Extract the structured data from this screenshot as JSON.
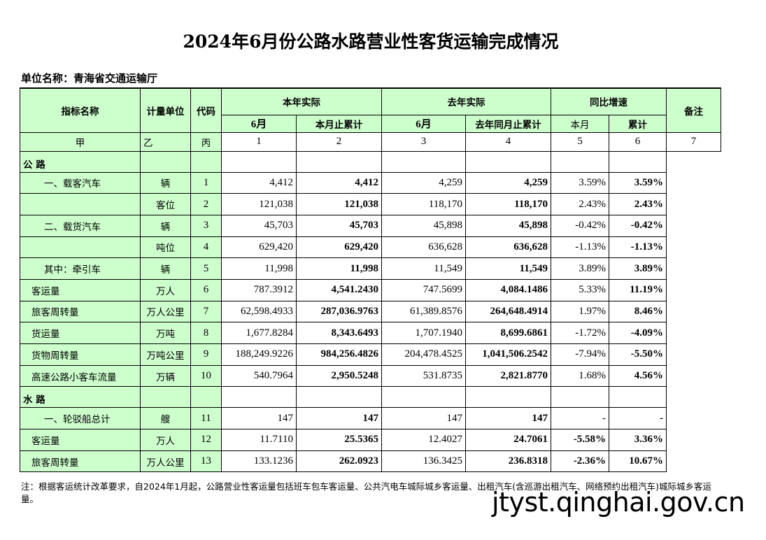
{
  "title": "2024年6月份公路水路营业性客货运输完成情况",
  "unit_label": "单位名称：青海省交通运输厅",
  "header": {
    "name": "指标名称",
    "unit": "计量单位",
    "code": "代码",
    "this_year": "本年实际",
    "last_year": "去年实际",
    "yoy": "同比增速",
    "remark": "备注",
    "ty_month": "6月",
    "ty_cum": "本月止累计",
    "ly_month": "6月",
    "ly_cum": "去年同月止累计",
    "yoy_month": "本月",
    "yoy_cum": "累计"
  },
  "index_row": [
    "甲",
    "乙",
    "丙",
    "1",
    "2",
    "3",
    "4",
    "5",
    "6",
    "7"
  ],
  "sections": [
    {
      "label": "公  路",
      "rows": [
        {
          "name": "一、载客汽车",
          "indent": 2,
          "unit": "辆",
          "code": "1",
          "v": [
            "4,412",
            "4,412",
            "4,259",
            "4,259",
            "3.59%",
            "3.59%"
          ]
        },
        {
          "name": "",
          "indent": 0,
          "unit": "客位",
          "code": "2",
          "v": [
            "121,038",
            "121,038",
            "118,170",
            "118,170",
            "2.43%",
            "2.43%"
          ]
        },
        {
          "name": "二、载货汽车",
          "indent": 2,
          "unit": "辆",
          "code": "3",
          "v": [
            "45,703",
            "45,703",
            "45,898",
            "45,898",
            "-0.42%",
            "-0.42%"
          ]
        },
        {
          "name": "",
          "indent": 0,
          "unit": "吨位",
          "code": "4",
          "v": [
            "629,420",
            "629,420",
            "636,628",
            "636,628",
            "-1.13%",
            "-1.13%"
          ]
        },
        {
          "name": "其中：牵引车",
          "indent": 2,
          "unit": "辆",
          "code": "5",
          "v": [
            "11,998",
            "11,998",
            "11,549",
            "11,549",
            "3.89%",
            "3.89%"
          ]
        },
        {
          "name": "客运量",
          "indent": 1,
          "unit": "万人",
          "code": "6",
          "v": [
            "787.3912",
            "4,541.2430",
            "747.5699",
            "4,084.1486",
            "5.33%",
            "11.19%"
          ]
        },
        {
          "name": "旅客周转量",
          "indent": 1,
          "unit": "万人公里",
          "code": "7",
          "v": [
            "62,598.4933",
            "287,036.9763",
            "61,389.8576",
            "264,648.4914",
            "1.97%",
            "8.46%"
          ]
        },
        {
          "name": "货运量",
          "indent": 1,
          "unit": "万吨",
          "code": "8",
          "v": [
            "1,677.8284",
            "8,343.6493",
            "1,707.1940",
            "8,699.6861",
            "-1.72%",
            "-4.09%"
          ]
        },
        {
          "name": "货物周转量",
          "indent": 1,
          "unit": "万吨公里",
          "code": "9",
          "v": [
            "188,249.9226",
            "984,256.4826",
            "204,478.4525",
            "1,041,506.2542",
            "-7.94%",
            "-5.50%"
          ]
        },
        {
          "name": "高速公路小客车流量",
          "indent": 1,
          "unit": "万辆",
          "code": "10",
          "v": [
            "540.7964",
            "2,950.5248",
            "531.8735",
            "2,821.8770",
            "1.68%",
            "4.56%"
          ]
        }
      ]
    },
    {
      "label": "水  路",
      "rows": [
        {
          "name": "一、轮驳船总计",
          "indent": 2,
          "unit": "艘",
          "code": "11",
          "v": [
            "147",
            "147",
            "147",
            "147",
            "-",
            "-"
          ]
        },
        {
          "name": "客运量",
          "indent": 1,
          "unit": "万人",
          "code": "12",
          "v": [
            "11.7110",
            "25.5365",
            "12.4027",
            "24.7061",
            "-5.58%",
            "3.36%"
          ],
          "bold_month_yoy": true
        },
        {
          "name": "旅客周转量",
          "indent": 1,
          "unit": "万人公里",
          "code": "13",
          "v": [
            "133.1236",
            "262.0923",
            "136.3425",
            "236.8318",
            "-2.36%",
            "10.67%"
          ],
          "bold_month_yoy": true
        }
      ]
    }
  ],
  "note": "注：根据客运统计改革要求，自2024年1月起，公路营业性客运量包括班车包车客运量、公共汽电车城际城乡客运量、出租汽车(含巡游出租汽车、网络预约出租汽车)城际城乡客运量。",
  "watermark": "jtyst.qinghai.gov.cn",
  "colors": {
    "header_bg": "#ccffcc"
  }
}
